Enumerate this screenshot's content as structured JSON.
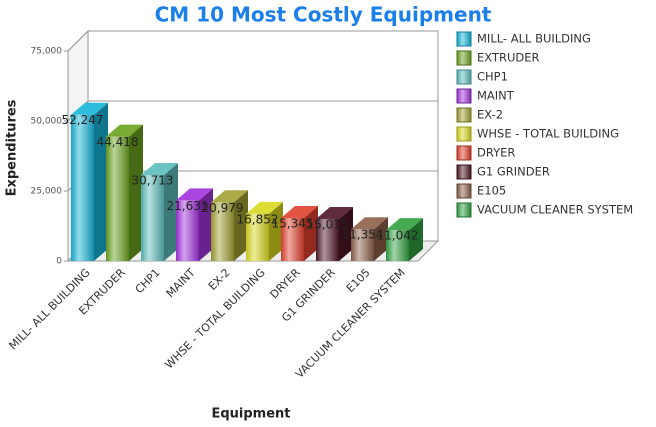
{
  "chart_data": {
    "type": "bar3d",
    "title": "CM 10 Most Costly Equipment",
    "x_label": "Equipment",
    "y_label": "Expenditures",
    "categories": [
      "MILL- ALL BUILDING",
      "EXTRUDER",
      "CHP1",
      "MAINT",
      "EX-2",
      "WHSE - TOTAL BUILDING",
      "DRYER",
      "G1 GRINDER",
      "E105",
      "VACUUM CLEANER SYSTEM"
    ],
    "values": [
      52247,
      44418,
      30713,
      21631,
      20979,
      16852,
      15345,
      15015,
      11354,
      11042
    ],
    "value_labels": [
      "52,247",
      "44,418",
      "30,713",
      "21,631",
      "20,979",
      "16,852",
      "15,345",
      "15,015",
      "11,354",
      "11,042"
    ],
    "colors": [
      "#16b4d8",
      "#6aa21e",
      "#5cbcbc",
      "#a232dc",
      "#a0a032",
      "#d8d81e",
      "#e0402c",
      "#4e1626",
      "#8c6048",
      "#30a040"
    ],
    "ylim": [
      0,
      75000
    ],
    "yticks": [
      0,
      {
        "value": 25000,
        "label": "25,000"
      },
      {
        "value": 50000,
        "label": "50,000"
      },
      {
        "value": 75000,
        "label": "75,000"
      }
    ],
    "grid": true
  }
}
